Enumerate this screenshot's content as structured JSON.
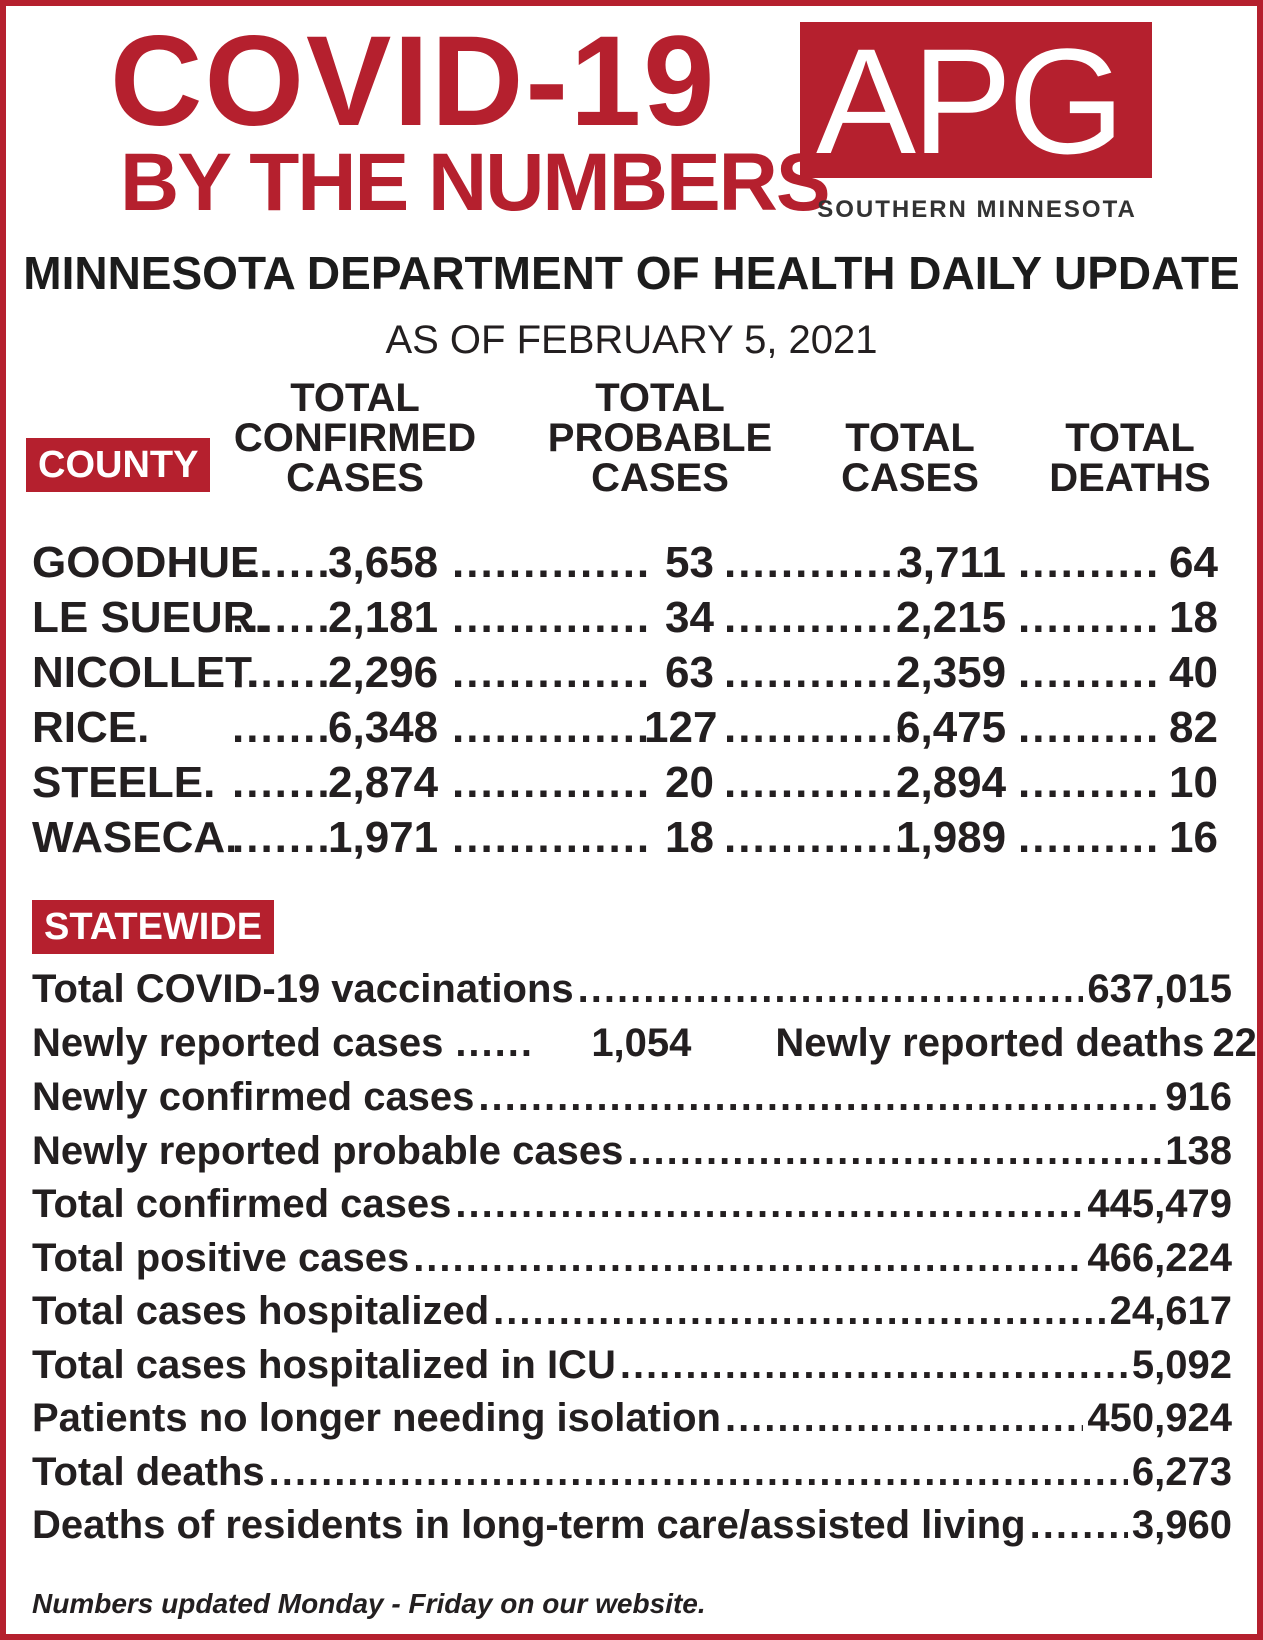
{
  "title": {
    "line1": "COVID-19",
    "line2": "BY THE NUMBERS"
  },
  "logo": {
    "text": "APG",
    "subtitle": "SOUTHERN MINNESOTA",
    "color": "#b5202e"
  },
  "heading": "MINNESOTA DEPARTMENT OF HEALTH DAILY UPDATE",
  "as_of": "AS OF FEBRUARY 5, 2021",
  "county_badge": "COUNTY",
  "columns": {
    "confirmed": [
      "TOTAL",
      "CONFIRMED",
      "CASES"
    ],
    "probable": [
      "TOTAL",
      "PROBABLE",
      "CASES"
    ],
    "cases": [
      "TOTAL",
      "CASES"
    ],
    "deaths": [
      "TOTAL",
      "DEATHS"
    ]
  },
  "counties": [
    {
      "name": "GOODHUE.",
      "confirmed": "3,658",
      "probable": "53",
      "total": "3,711",
      "deaths": "64"
    },
    {
      "name": "LE SUEUR.",
      "confirmed": "2,181",
      "probable": "34",
      "total": "2,215",
      "deaths": "18"
    },
    {
      "name": "NICOLLET.",
      "confirmed": "2,296",
      "probable": "63",
      "total": "2,359",
      "deaths": "40"
    },
    {
      "name": "RICE.",
      "confirmed": "6,348",
      "probable": "127",
      "total": "6,475",
      "deaths": "82"
    },
    {
      "name": "STEELE.",
      "confirmed": "2,874",
      "probable": "20",
      "total": "2,894",
      "deaths": "10"
    },
    {
      "name": "WASECA.",
      "confirmed": "1,971",
      "probable": "18",
      "total": "1,989",
      "deaths": "16"
    }
  ],
  "statewide_badge": "STATEWIDE",
  "statewide": {
    "vaccinations": {
      "label": "Total COVID-19 vaccinations",
      "value": "637,015"
    },
    "newly_reported_cases": {
      "label": "Newly reported cases",
      "value": "1,054"
    },
    "newly_reported_deaths": {
      "label": "Newly reported deaths",
      "value": "22"
    },
    "rows": [
      {
        "label": "Newly confirmed cases",
        "value": "916"
      },
      {
        "label": "Newly reported probable cases",
        "value": "138"
      },
      {
        "label": "Total confirmed cases",
        "value": "445,479"
      },
      {
        "label": "Total positive cases",
        "value": "466,224"
      },
      {
        "label": "Total cases hospitalized",
        "value": "24,617"
      },
      {
        "label": "Total cases hospitalized in ICU",
        "value": "5,092"
      },
      {
        "label": "Patients no longer needing isolation",
        "value": "450,924"
      },
      {
        "label": "Total deaths",
        "value": "6,273"
      },
      {
        "label": "Deaths of residents in long-term care/assisted living",
        "value": "3,960"
      }
    ]
  },
  "footer": "Numbers updated Monday - Friday on our website."
}
